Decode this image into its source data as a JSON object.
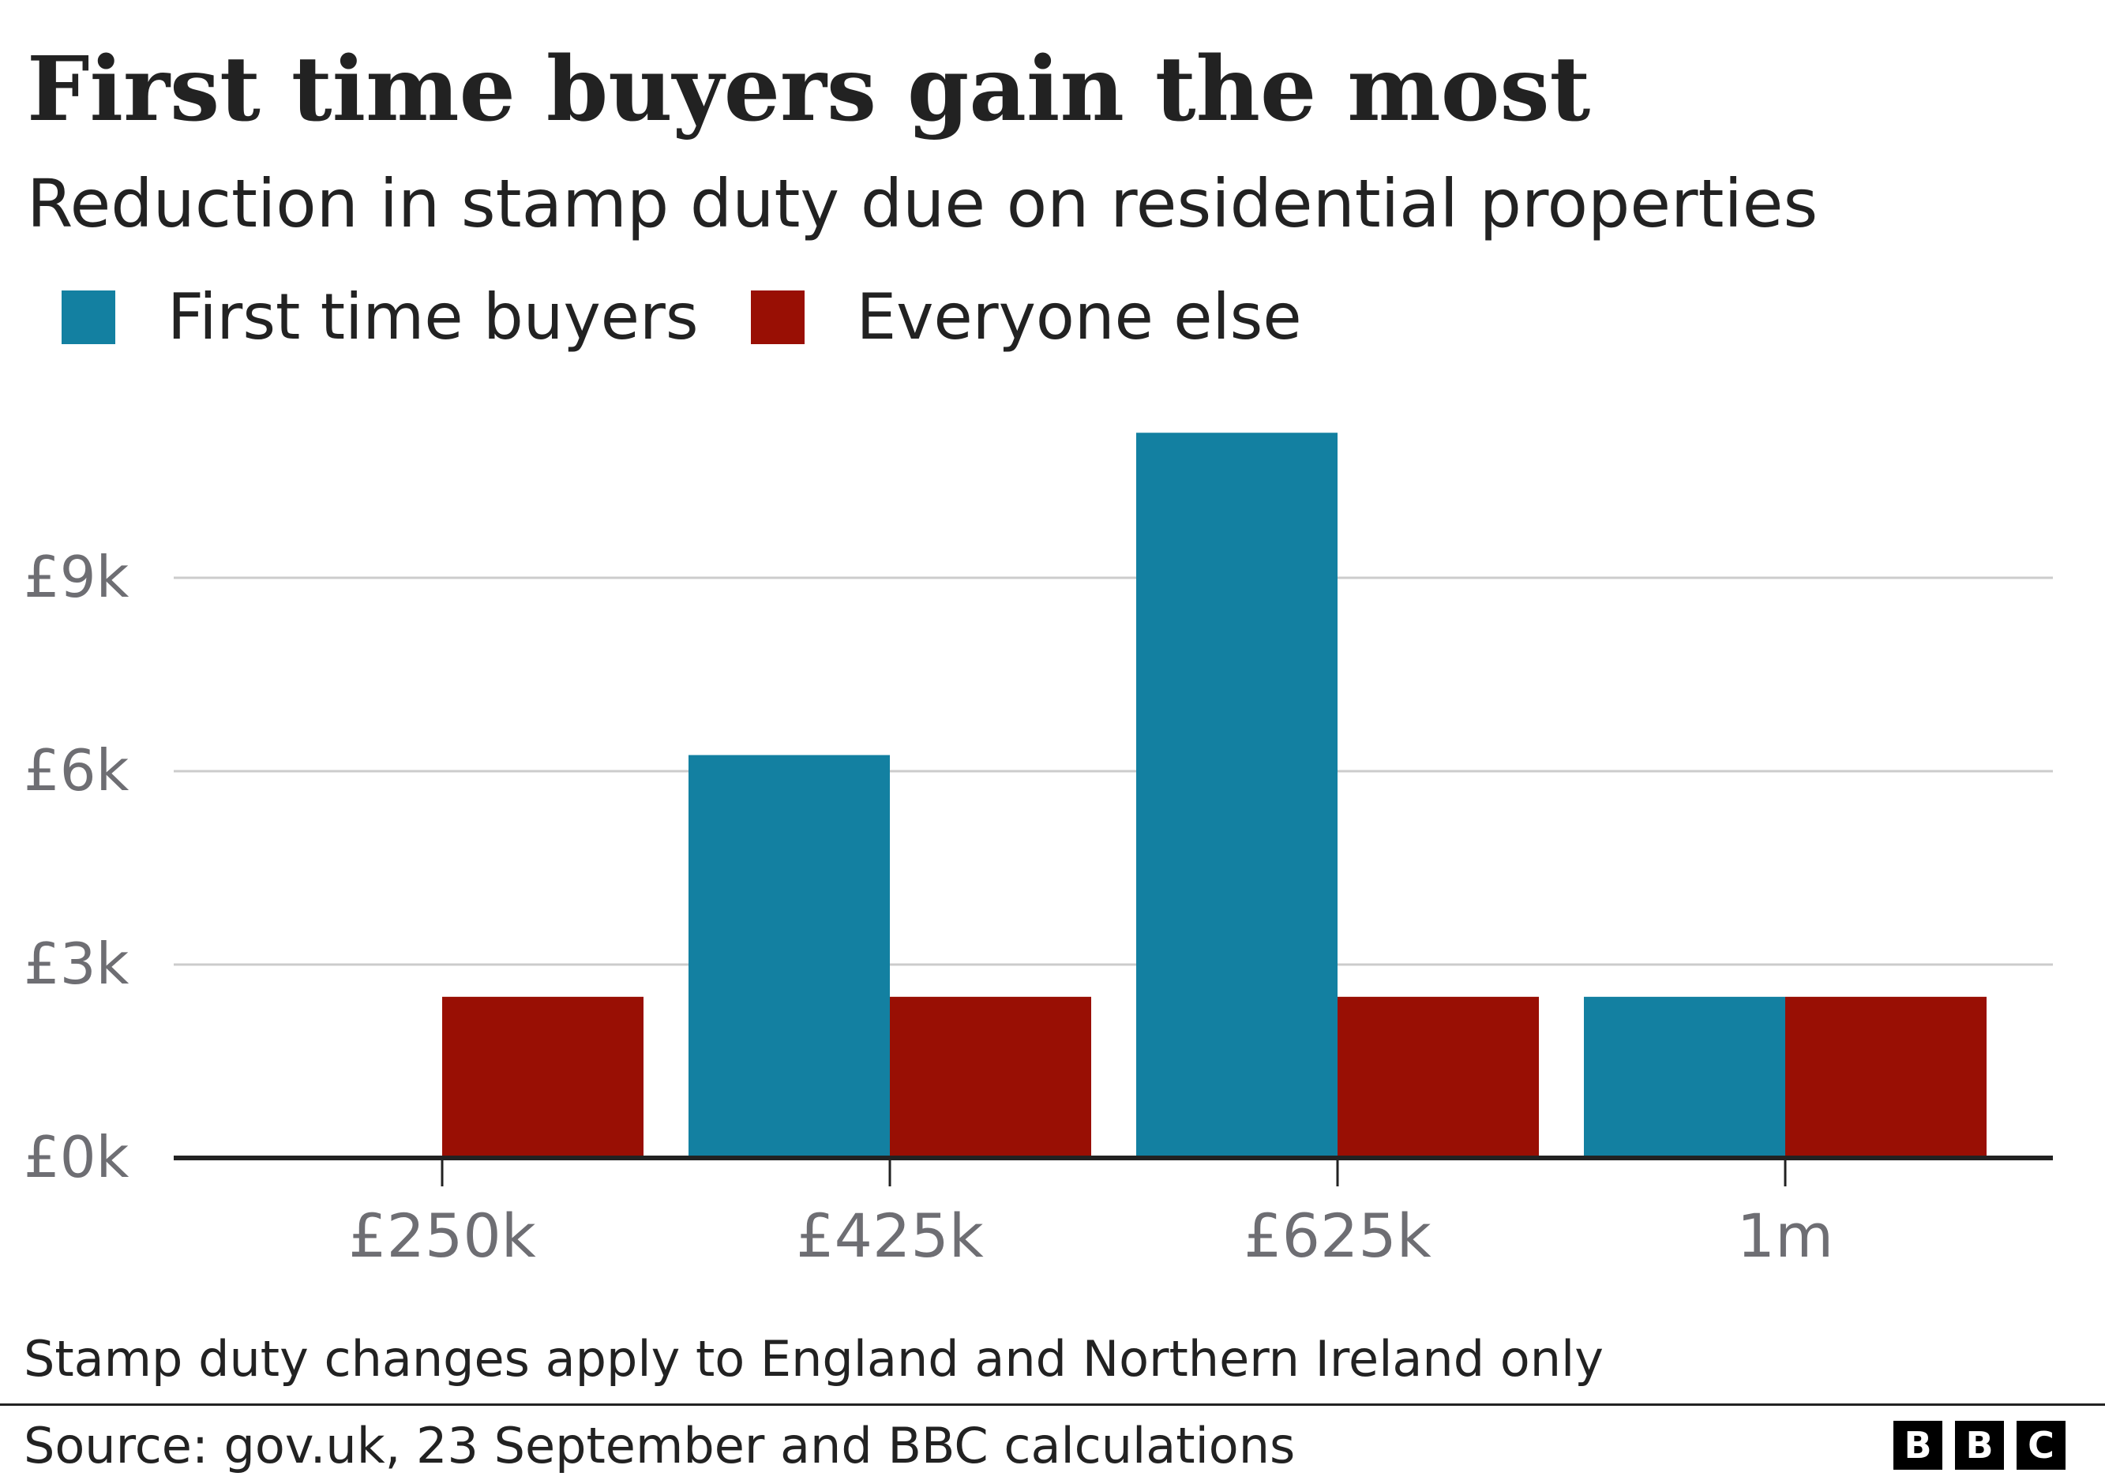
{
  "chart_data": {
    "type": "bar",
    "title": "First time buyers gain the most",
    "subtitle": "Reduction in stamp duty due on residential properties",
    "categories": [
      "£250k",
      "£425k",
      "£625k",
      "1m"
    ],
    "series": [
      {
        "name": "First time buyers",
        "color": "#1380A1",
        "values": [
          0,
          6250,
          11250,
          2500
        ]
      },
      {
        "name": "Everyone else",
        "color": "#990F04",
        "values": [
          2500,
          2500,
          2500,
          2500
        ]
      }
    ],
    "y_ticks": [
      {
        "value": 0,
        "label": "£0k"
      },
      {
        "value": 3000,
        "label": "£3k"
      },
      {
        "value": 6000,
        "label": "£6k"
      },
      {
        "value": 9000,
        "label": "£9k"
      }
    ],
    "ylim": [
      0,
      12000
    ],
    "xlabel": "",
    "ylabel": "",
    "grid": true,
    "legend_position": "top-left"
  },
  "footer": {
    "note": "Stamp duty changes apply to England and Northern Ireland only",
    "source": "Source: gov.uk, 23 September and BBC calculations",
    "logo": [
      "B",
      "B",
      "C"
    ]
  }
}
